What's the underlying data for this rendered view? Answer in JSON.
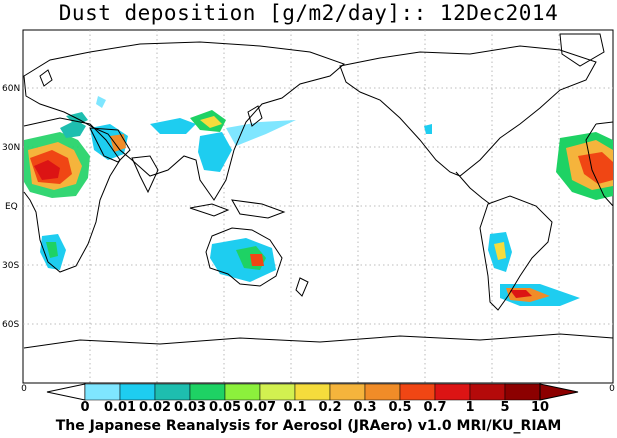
{
  "title": "Dust deposition [g/m2/day]:: 12Dec2014",
  "footer": "The Japanese Reanalysis for Aerosol (JRAero) v1.0 MRI/KU_RIAM",
  "lat_labels": [
    "60N",
    "30N",
    "EQ",
    "30S",
    "60S"
  ],
  "colorbar": {
    "left_end_label": "0",
    "right_end_label": "0",
    "levels": [
      "0",
      "0.01",
      "0.02",
      "0.03",
      "0.05",
      "0.07",
      "0.1",
      "0.2",
      "0.3",
      "0.5",
      "0.7",
      "1",
      "5",
      "10"
    ],
    "colors": [
      "#ffffff",
      "#7fe6ff",
      "#1ecdf0",
      "#1ebeaf",
      "#1ed264",
      "#8cf03c",
      "#d2f050",
      "#f5dc3c",
      "#f5b43c",
      "#f08c28",
      "#f04614",
      "#dc1414",
      "#b40a0a",
      "#8c0000"
    ],
    "under_color": "#ffffff",
    "over_color": "#8c0000"
  },
  "colors": {
    "land_outline": "#000000",
    "grid": "#a0a0a0",
    "frame": "#000000"
  }
}
